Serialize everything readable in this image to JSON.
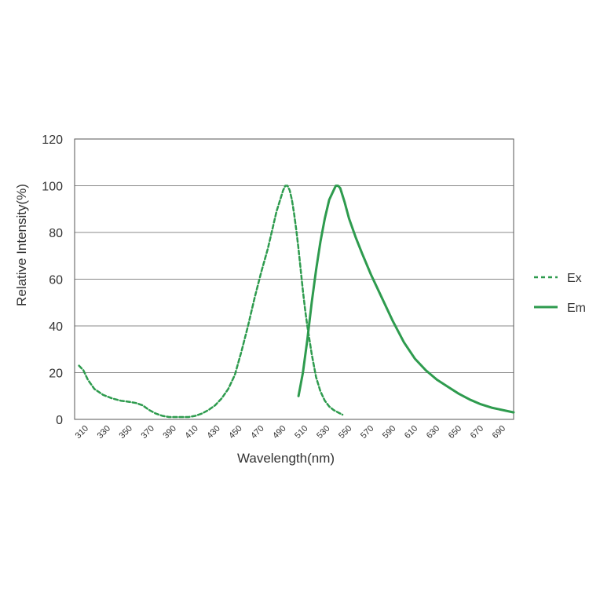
{
  "chart_data": {
    "type": "line",
    "title": "",
    "xlabel": "Wavelength(nm)",
    "ylabel": "Relative Intensity(%)",
    "xlim": [
      300,
      700
    ],
    "ylim": [
      0,
      120
    ],
    "x_ticks": [
      "310",
      "330",
      "350",
      "370",
      "390",
      "410",
      "430",
      "450",
      "470",
      "490",
      "510",
      "530",
      "550",
      "570",
      "590",
      "610",
      "630",
      "650",
      "670",
      "690"
    ],
    "y_ticks": [
      "0",
      "20",
      "40",
      "60",
      "80",
      "100",
      "120"
    ],
    "grid": "horizontal",
    "legend_position": "right",
    "series": [
      {
        "name": "Ex",
        "style": "dashed",
        "color": "#2e9b4e",
        "x": [
          304,
          308,
          312,
          318,
          326,
          334,
          342,
          350,
          356,
          362,
          368,
          374,
          380,
          386,
          392,
          398,
          404,
          410,
          416,
          422,
          428,
          434,
          440,
          446,
          452,
          458,
          464,
          470,
          476,
          480,
          484,
          488,
          490,
          492,
          494,
          496,
          498,
          500,
          502,
          504,
          506,
          508,
          510,
          512,
          514,
          516,
          518,
          520,
          524,
          528,
          532,
          536,
          540,
          544
        ],
        "y": [
          23,
          21,
          17,
          13,
          10.5,
          9,
          8,
          7.5,
          7,
          6,
          4,
          2.5,
          1.5,
          1,
          1,
          1,
          1,
          1.5,
          2.5,
          4,
          6,
          9,
          13,
          19,
          29,
          40,
          52,
          63,
          73,
          81,
          89,
          95,
          98,
          100,
          100,
          98,
          94,
          88,
          81,
          73,
          64,
          55,
          47,
          40,
          34,
          28,
          23,
          18,
          12,
          8,
          5.5,
          4,
          3,
          2
        ]
      },
      {
        "name": "Em",
        "style": "solid",
        "color": "#2e9b4e",
        "x": [
          504,
          508,
          512,
          516,
          520,
          524,
          528,
          532,
          536,
          538,
          540,
          542,
          546,
          550,
          556,
          562,
          570,
          580,
          590,
          600,
          610,
          620,
          630,
          640,
          650,
          660,
          670,
          680,
          690,
          700
        ],
        "y": [
          10,
          20,
          34,
          50,
          64,
          76,
          86,
          94,
          98,
          100,
          100,
          99,
          93,
          86,
          78,
          71,
          62,
          52,
          42,
          33,
          26,
          21,
          17,
          14,
          11,
          8.5,
          6.5,
          5,
          4,
          3
        ]
      }
    ]
  }
}
